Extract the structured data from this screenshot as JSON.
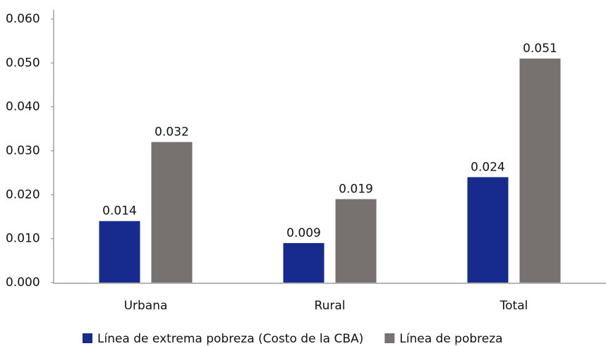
{
  "chart_data": {
    "type": "bar",
    "categories": [
      "Urbana",
      "Rural",
      "Total"
    ],
    "series": [
      {
        "name": "Línea de extrema pobreza (Costo de la CBA)",
        "color": "#172b8f",
        "values": [
          0.014,
          0.009,
          0.024
        ]
      },
      {
        "name": "Línea de pobreza",
        "color": "#777270",
        "values": [
          0.032,
          0.019,
          0.051
        ]
      }
    ],
    "ylim": [
      0,
      0.06
    ],
    "yticks": [
      {
        "value": 0,
        "label": "0.000"
      },
      {
        "value": 0.01,
        "label": "0.010"
      },
      {
        "value": 0.02,
        "label": "0.020"
      },
      {
        "value": 0.03,
        "label": "0.030"
      },
      {
        "value": 0.04,
        "label": "0.040"
      },
      {
        "value": 0.05,
        "label": "0.050"
      },
      {
        "value": 0.06,
        "label": "0.060"
      }
    ],
    "grid": false
  }
}
